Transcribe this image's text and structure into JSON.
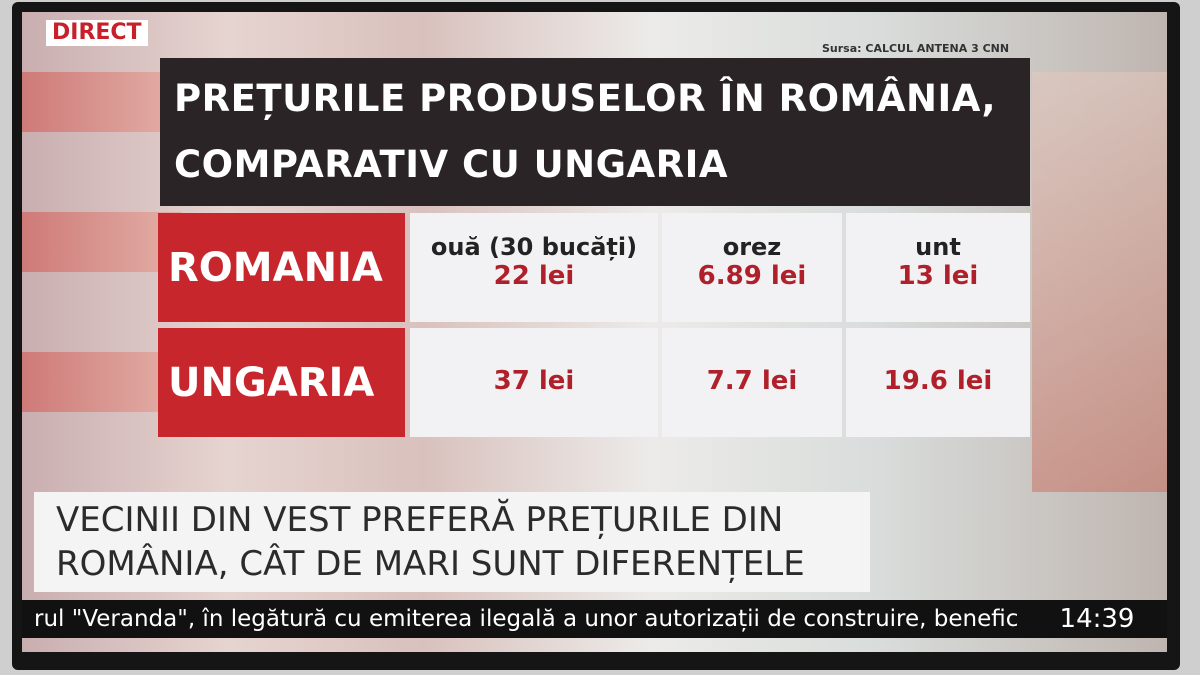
{
  "badge": "DIRECT",
  "source": "Sursa: CALCUL ANTENA 3 CNN",
  "title": {
    "lines": [
      "PREȚURILE PRODUSELOR ÎN ROMÂNIA,",
      "COMPARATIV CU UNGARIA"
    ]
  },
  "table": {
    "columns": [
      "ouă (30 bucăți)",
      "orez",
      "unt"
    ],
    "rows": [
      {
        "country": "ROMANIA",
        "values": [
          "22 lei",
          "6.89 lei",
          "13 lei"
        ]
      },
      {
        "country": "UNGARIA",
        "values": [
          "37 lei",
          "7.7 lei",
          "19.6 lei"
        ]
      }
    ]
  },
  "headline": {
    "lines": [
      "VECINII DIN VEST PREFERĂ PREȚURILE DIN",
      "ROMÂNIA, CÂT DE MARI SUNT DIFERENȚELE"
    ]
  },
  "ticker": "rul \"Veranda\", în legătură cu emiterea ilegală a unor autorizații de construire, benefic",
  "clock": "14:39"
}
